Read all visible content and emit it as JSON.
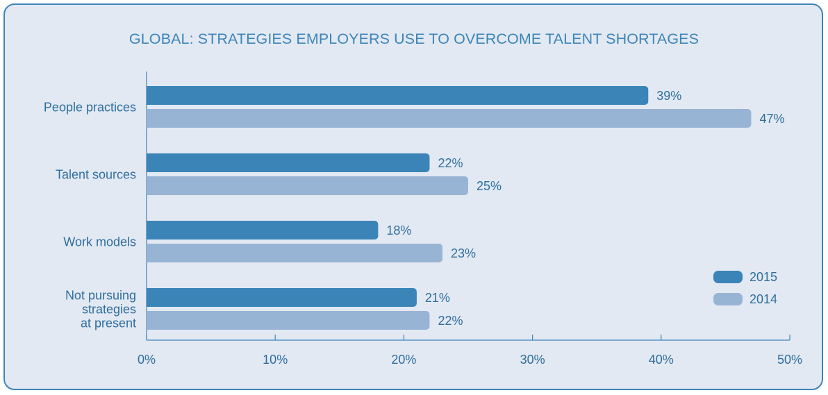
{
  "chart_data": {
    "type": "bar",
    "orientation": "horizontal",
    "title": "GLOBAL: STRATEGIES EMPLOYERS USE TO OVERCOME TALENT SHORTAGES",
    "categories": [
      [
        "People practices"
      ],
      [
        "Talent sources"
      ],
      [
        "Work models"
      ],
      [
        "Not pursuing",
        "strategies",
        "at present"
      ]
    ],
    "series": [
      {
        "name": "2015",
        "values": [
          39,
          22,
          18,
          21
        ],
        "color": "#3b84b8"
      },
      {
        "name": "2014",
        "values": [
          47,
          25,
          23,
          22
        ],
        "color": "#98b4d4"
      }
    ],
    "value_suffix": "%",
    "xlim": [
      0,
      50
    ],
    "xticks": [
      0,
      10,
      20,
      30,
      40,
      50
    ],
    "tick_labels": [
      "0%",
      "10%",
      "20%",
      "30%",
      "40%",
      "50%"
    ],
    "grid": false,
    "legend_position": "bottom-right"
  },
  "colors": {
    "border": "#3e85b8",
    "panel": "#e2e9f3",
    "text": "#2f6e9d",
    "axis": "#3e85b8"
  }
}
